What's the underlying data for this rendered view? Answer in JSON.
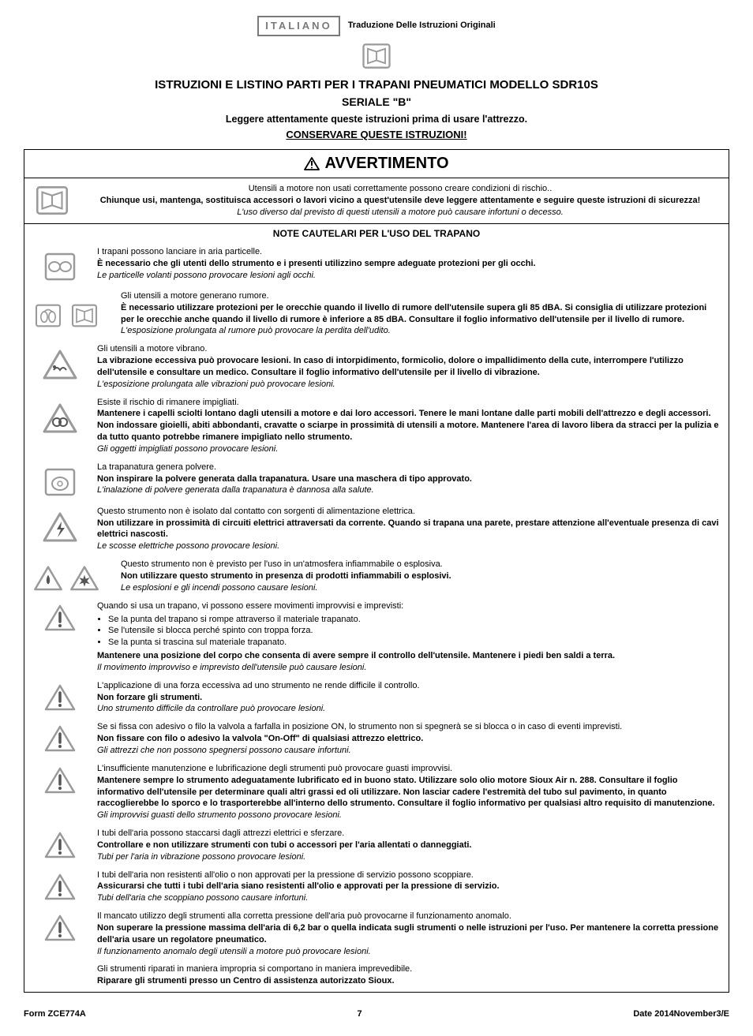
{
  "header": {
    "language_badge": "ITALIANO",
    "translation_label": "Traduzione Delle Istruzioni Originali"
  },
  "title": {
    "line1": "ISTRUZIONI E LISTINO PARTI PER I TRAPANI PNEUMATICI MODELLO SDR10S",
    "line2": "SERIALE \"B\"",
    "read": "Leggere attentamente queste istruzioni prima di usare l'attrezzo.",
    "keep": "CONSERVARE QUESTE ISTRUZIONI!"
  },
  "warning_heading": "AVVERTIMENTO",
  "intro": {
    "l1": "Utensili a motore non usati correttamente possono creare condizioni di rischio..",
    "l2": "Chiunque usi, mantenga, sostituisca accessori o lavori vicino a quest'utensile deve leggere attentamente e seguire queste istruzioni di sicurezza!",
    "l3": "L'uso diverso dal previsto di questi utensili a motore può causare infortuni o decesso."
  },
  "section_heading": "NOTE CAUTELARI PER L'USO DEL TRAPANO",
  "notes": [
    {
      "icon": "goggles",
      "lead": "I trapani possono lanciare in aria particelle.",
      "bold": "È necessario che gli utenti dello strumento e i presenti utilizzino sempre adeguate protezioni per gli occhi.",
      "ital": "Le particelle volanti possono provocare lesioni agli occhi."
    },
    {
      "icon": "ear-manual",
      "lead": "Gli utensili a motore generano rumore.",
      "bold": "È necessario utilizzare protezioni per le orecchie quando il livello di rumore dell'utensile supera gli 85 dBA. Si consiglia di utilizzare protezioni per le orecchie anche quando il livello di rumore è inferiore a 85 dBA. Consultare il foglio informativo dell'utensile per il livello di rumore.",
      "ital": "L'esposizione prolungata al rumore può provocare la perdita dell'udito."
    },
    {
      "icon": "vibration",
      "lead": "Gli utensili a motore vibrano.",
      "bold": "La vibrazione eccessiva può provocare lesioni. In caso di intorpidimento, formicolio, dolore o impallidimento della cute, interrompere l'utilizzo dell'utensile e consultare un medico. Consultare il foglio informativo dell'utensile per il livello di vibrazione.",
      "ital": "L'esposizione prolungata alle vibrazioni può provocare lesioni."
    },
    {
      "icon": "entangle",
      "lead": "Esiste il rischio di rimanere impigliati.",
      "bold": "Mantenere i capelli sciolti lontano dagli utensili a motore e dai loro accessori. Tenere le mani lontane dalle parti mobili dell'attrezzo e degli accessori. Non indossare gioielli, abiti abbondanti, cravatte o sciarpe in prossimità di utensili a motore. Mantenere l'area di lavoro libera da stracci per la pulizia e da tutto quanto potrebbe rimanere impigliato nello strumento.",
      "ital": "Gli oggetti impigliati possono provocare lesioni."
    },
    {
      "icon": "mask",
      "lead": "La trapanatura genera polvere.",
      "bold": "Non inspirare la polvere generata dalla trapanatura. Usare una maschera di tipo approvato.",
      "ital": "L'inalazione di polvere generata dalla trapanatura è dannosa alla salute."
    },
    {
      "icon": "electric",
      "lead": "Questo strumento non è isolato dal contatto con sorgenti di alimentazione elettrica.",
      "bold": "Non utilizzare in prossimità di circuiti elettrici attraversati da corrente. Quando si trapana una parete, prestare attenzione all'eventuale presenza di cavi elettrici nascosti.",
      "ital": "Le scosse elettriche possono provocare lesioni."
    },
    {
      "icon": "fire",
      "lead": "Questo strumento non è previsto per l'uso in un'atmosfera infiammabile o esplosiva.",
      "bold": "Non utilizzare questo strumento in presenza di prodotti infiammabili o esplosivi.",
      "ital": "Le esplosioni e gli incendi possono causare lesioni."
    },
    {
      "icon": "warn",
      "lead": "Quando si usa un trapano, vi possono essere movimenti improvvisi e imprevisti:",
      "bullets": [
        "Se la punta del trapano si rompe attraverso il materiale trapanato.",
        "Se l'utensile si blocca perché spinto con troppa forza.",
        "Se la punta si trascina sul materiale trapanato."
      ],
      "bold": "Mantenere una posizione del corpo che consenta di avere sempre il controllo dell'utensile. Mantenere i piedi ben saldi a terra.",
      "ital": "Il movimento improvviso e imprevisto dell'utensile può causare lesioni."
    },
    {
      "icon": "warn",
      "lead": "L'applicazione di una forza eccessiva ad uno strumento ne rende difficile il controllo.",
      "bold": "Non forzare gli strumenti.",
      "ital": "Uno strumento difficile da controllare può provocare lesioni."
    },
    {
      "icon": "warn",
      "lead": "Se si fissa con adesivo o filo la valvola a farfalla in posizione ON, lo strumento non si spegnerà se si blocca o in caso di eventi imprevisti.",
      "bold": "Non fissare con filo o adesivo la valvola \"On-Off\" di qualsiasi attrezzo elettrico.",
      "ital": "Gli attrezzi che non possono spegnersi possono causare infortuni."
    },
    {
      "icon": "warn",
      "lead": "L'insufficiente manutenzione e lubrificazione degli strumenti può provocare guasti improvvisi.",
      "bold": "Mantenere sempre lo strumento adeguatamente lubrificato ed in buono stato. Utilizzare solo olio motore Sioux Air n. 288. Consultare il foglio informativo dell'utensile per determinare quali altri grassi ed oli utilizzare. Non lasciar cadere l'estremità del tubo sul pavimento, in quanto raccoglierebbe lo sporco e lo trasporterebbe all'interno dello strumento. Consultare il foglio informativo per qualsiasi altro requisito di manutenzione.",
      "ital": "Gli improvvisi guasti dello strumento possono provocare lesioni."
    },
    {
      "icon": "warn",
      "lead": "I tubi dell'aria possono staccarsi dagli attrezzi elettrici e sferzare.",
      "bold": "Controllare e non utilizzare strumenti con tubi o accessori per l'aria allentati o danneggiati.",
      "ital": "Tubi per l'aria in vibrazione possono provocare lesioni."
    },
    {
      "icon": "warn",
      "lead": "I tubi dell'aria non resistenti all'olio o non approvati per la pressione di servizio possono scoppiare.",
      "bold": "Assicurarsi che tutti i tubi dell'aria siano resistenti all'olio e approvati per la pressione di servizio.",
      "ital": "Tubi dell'aria che scoppiano possono causare infortuni."
    },
    {
      "icon": "warn",
      "lead": "Il mancato utilizzo degli strumenti alla corretta pressione dell'aria può provocarne il funzionamento anomalo.",
      "bold": "Non superare la pressione massima dell'aria di 6,2 bar o quella indicata sugli strumenti o nelle istruzioni per l'uso. Per mantenere la corretta pressione dell'aria usare un regolatore pneumatico.",
      "ital": "Il funzionamento anomalo degli utensili a motore può provocare lesioni."
    },
    {
      "icon": "none",
      "lead": "Gli strumenti riparati in maniera impropria si comportano in maniera imprevedibile.",
      "bold": "Riparare gli strumenti presso un Centro di assistenza autorizzato Sioux.",
      "ital": ""
    }
  ],
  "footer": {
    "form": "Form ZCE774A",
    "page": "7",
    "date": "Date 2014November3/E"
  },
  "colors": {
    "text": "#000000",
    "bg": "#ffffff",
    "icon_grey": "#9a9a9a",
    "icon_dark": "#555555",
    "badge_grey": "#7a7a7a"
  }
}
